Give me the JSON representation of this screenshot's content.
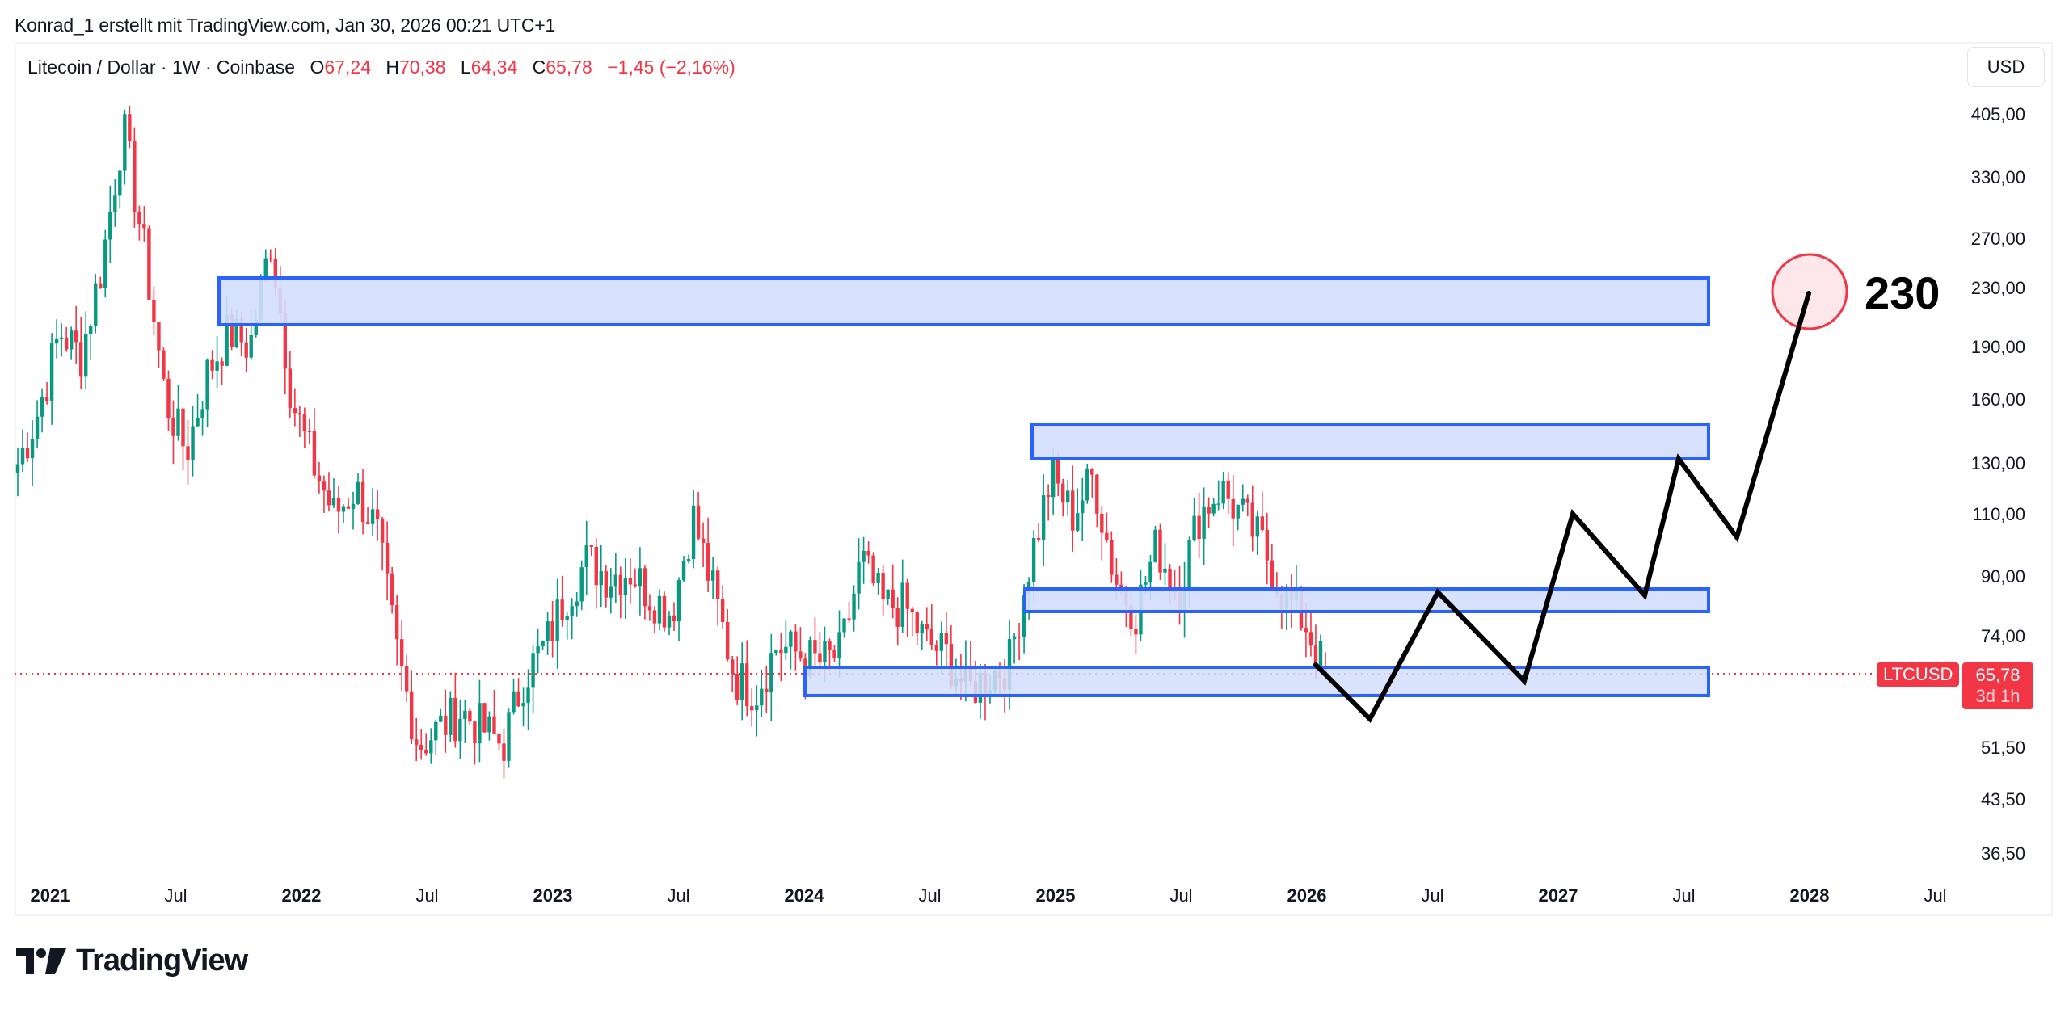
{
  "attribution": "Konrad_1 erstellt mit TradingView.com, Jan 30, 2026 00:21 UTC+1",
  "legend": {
    "symbol": "Litecoin / Dollar · 1W · Coinbase",
    "open_label": "O",
    "open": "67,24",
    "high_label": "H",
    "high": "70,38",
    "low_label": "L",
    "low": "64,34",
    "close_label": "C",
    "close": "65,78",
    "change": "−1,45 (−2,16%)"
  },
  "currency_button": "USD",
  "price_axis": [
    "405,00",
    "330,00",
    "270,00",
    "230,00",
    "190,00",
    "160,00",
    "130,00",
    "110,00",
    "90,00",
    "74,00",
    "51,50",
    "43,50",
    "36,50"
  ],
  "time_axis": [
    {
      "label": "2021",
      "year": true
    },
    {
      "label": "Jul",
      "year": false
    },
    {
      "label": "2022",
      "year": true
    },
    {
      "label": "Jul",
      "year": false
    },
    {
      "label": "2023",
      "year": true
    },
    {
      "label": "Jul",
      "year": false
    },
    {
      "label": "2024",
      "year": true
    },
    {
      "label": "Jul",
      "year": false
    },
    {
      "label": "2025",
      "year": true
    },
    {
      "label": "Jul",
      "year": false
    },
    {
      "label": "2026",
      "year": true
    },
    {
      "label": "Jul",
      "year": false
    },
    {
      "label": "2027",
      "year": true
    },
    {
      "label": "Jul",
      "year": false
    },
    {
      "label": "2028",
      "year": true
    },
    {
      "label": "Jul",
      "year": false
    }
  ],
  "current_price": {
    "symbol": "LTCUSD",
    "price": "65,78",
    "countdown": "3d 1h"
  },
  "target": {
    "label": "230"
  },
  "brand": {
    "name": "TradingView"
  },
  "colors": {
    "up": "#089981",
    "down": "#f23645",
    "zone_fill": "#d3defc",
    "zone_stroke": "#2962ff",
    "path": "#000000",
    "target_stroke": "#f23645",
    "target_fill": "#fde7ea"
  },
  "chart_data": {
    "type": "candlestick",
    "title": "Litecoin / Dollar · 1W · Coinbase",
    "xlabel": "",
    "ylabel": "USD",
    "scale": "log",
    "ylim": [
      33,
      430
    ],
    "x_range": [
      "2020-12",
      "2028-09"
    ],
    "grid": false,
    "last_bar": {
      "open": 67.24,
      "high": 70.38,
      "low": 64.34,
      "close": 65.78,
      "change": -1.45,
      "change_pct": -2.16
    },
    "weekly_close_path": [
      [
        "2020-12",
        130
      ],
      [
        "2021-01",
        155
      ],
      [
        "2021-02",
        200
      ],
      [
        "2021-03",
        185
      ],
      [
        "2021-04",
        250
      ],
      [
        "2021-05",
        390
      ],
      [
        "2021-05b",
        260
      ],
      [
        "2021-06",
        160
      ],
      [
        "2021-07",
        135
      ],
      [
        "2021-08",
        175
      ],
      [
        "2021-09",
        200
      ],
      [
        "2021-10",
        190
      ],
      [
        "2021-11",
        270
      ],
      [
        "2021-12",
        160
      ],
      [
        "2022-01",
        130
      ],
      [
        "2022-02",
        110
      ],
      [
        "2022-03",
        120
      ],
      [
        "2022-04",
        105
      ],
      [
        "2022-05",
        70
      ],
      [
        "2022-06",
        52
      ],
      [
        "2022-07",
        55
      ],
      [
        "2022-08",
        58
      ],
      [
        "2022-09",
        55
      ],
      [
        "2022-10",
        52
      ],
      [
        "2022-11",
        65
      ],
      [
        "2022-12",
        72
      ],
      [
        "2023-01",
        85
      ],
      [
        "2023-02",
        95
      ],
      [
        "2023-03",
        90
      ],
      [
        "2023-04",
        92
      ],
      [
        "2023-05",
        85
      ],
      [
        "2023-06",
        80
      ],
      [
        "2023-07",
        110
      ],
      [
        "2023-08",
        85
      ],
      [
        "2023-09",
        65
      ],
      [
        "2023-10",
        62
      ],
      [
        "2023-11",
        72
      ],
      [
        "2023-12",
        70
      ],
      [
        "2024-01",
        68
      ],
      [
        "2024-02",
        70
      ],
      [
        "2024-03",
        95
      ],
      [
        "2024-04",
        82
      ],
      [
        "2024-05",
        82
      ],
      [
        "2024-06",
        73
      ],
      [
        "2024-07",
        70
      ],
      [
        "2024-08",
        62
      ],
      [
        "2024-09",
        65
      ],
      [
        "2024-10",
        68
      ],
      [
        "2024-11",
        95
      ],
      [
        "2024-12",
        125
      ],
      [
        "2025-01",
        110
      ],
      [
        "2025-02",
        125
      ],
      [
        "2025-03",
        90
      ],
      [
        "2025-04",
        80
      ],
      [
        "2025-05",
        100
      ],
      [
        "2025-06",
        85
      ],
      [
        "2025-07",
        110
      ],
      [
        "2025-08",
        120
      ],
      [
        "2025-09",
        110
      ],
      [
        "2025-10",
        100
      ],
      [
        "2025-11",
        85
      ],
      [
        "2025-12",
        78
      ],
      [
        "2026-01",
        65.78
      ]
    ],
    "zones": [
      {
        "name": "zone-1",
        "from": "2021-09",
        "to": "2027-07",
        "low": 205,
        "high": 240
      },
      {
        "name": "zone-2",
        "from": "2024-11",
        "to": "2027-07",
        "low": 133,
        "high": 148
      },
      {
        "name": "zone-3",
        "from": "2024-11",
        "to": "2027-07",
        "low": 80,
        "high": 86
      },
      {
        "name": "zone-4",
        "from": "2024-01",
        "to": "2027-07",
        "low": 60,
        "high": 66
      }
    ],
    "projection_path": [
      {
        "date": "2026-01",
        "price": 66
      },
      {
        "date": "2026-04",
        "price": 55
      },
      {
        "date": "2026-07",
        "price": 85
      },
      {
        "date": "2026-12",
        "price": 60
      },
      {
        "date": "2027-03",
        "price": 110
      },
      {
        "date": "2027-07",
        "price": 83
      },
      {
        "date": "2027-08",
        "price": 132
      },
      {
        "date": "2027-10",
        "price": 102
      },
      {
        "date": "2028-01",
        "price": 230
      }
    ],
    "annotations": [
      {
        "text": "230",
        "type": "target-circle",
        "price": 230,
        "date": "2028-01"
      }
    ]
  }
}
